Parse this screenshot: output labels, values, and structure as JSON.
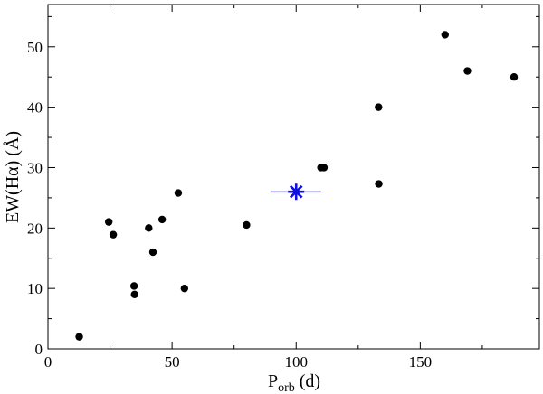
{
  "chart_data": {
    "type": "scatter",
    "title": "",
    "xlabel": {
      "main": "P",
      "subscript": "orb",
      "unit": " (d)"
    },
    "ylabel": "EW(Hα) (Å)",
    "xlim": [
      0,
      198
    ],
    "ylim": [
      0,
      57
    ],
    "xticks": [
      0,
      50,
      100,
      150
    ],
    "yticks": [
      0,
      10,
      20,
      30,
      40,
      50
    ],
    "grid": false,
    "legend": "none",
    "series": [
      {
        "marker": "circle",
        "color": "#000000",
        "points": [
          {
            "x": 12.6,
            "y": 2.0
          },
          {
            "x": 24.5,
            "y": 21.0
          },
          {
            "x": 26.3,
            "y": 18.9
          },
          {
            "x": 34.7,
            "y": 10.4
          },
          {
            "x": 34.9,
            "y": 9.0
          },
          {
            "x": 40.6,
            "y": 20.0
          },
          {
            "x": 42.3,
            "y": 16.0
          },
          {
            "x": 46.0,
            "y": 21.4
          },
          {
            "x": 52.5,
            "y": 25.8
          },
          {
            "x": 55.0,
            "y": 10.0
          },
          {
            "x": 80.0,
            "y": 20.5
          },
          {
            "x": 110.0,
            "y": 30.0
          },
          {
            "x": 111.2,
            "y": 30.0
          },
          {
            "x": 133.2,
            "y": 40.0
          },
          {
            "x": 133.3,
            "y": 27.3
          },
          {
            "x": 160.0,
            "y": 52.0
          },
          {
            "x": 169.0,
            "y": 46.0
          },
          {
            "x": 187.8,
            "y": 45.0
          }
        ]
      },
      {
        "marker": "asterisk",
        "color": "#1010e0",
        "points": [
          {
            "x": 100.0,
            "y": 26.0,
            "xerr": 10.0
          }
        ]
      }
    ]
  }
}
